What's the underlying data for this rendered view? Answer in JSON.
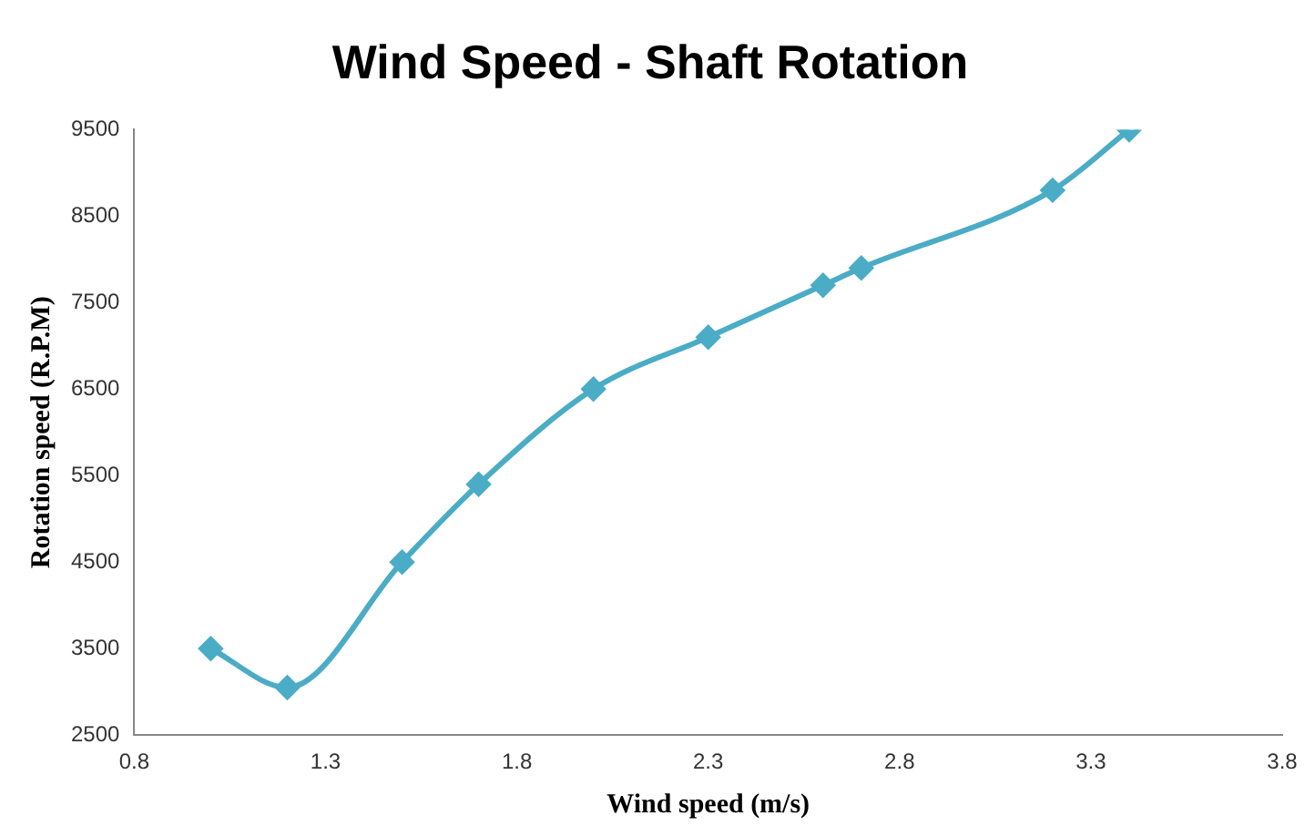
{
  "chart_data": {
    "type": "line",
    "title": "Wind Speed - Shaft Rotation",
    "xlabel": "Wind speed (m/s)",
    "ylabel": "Rotation speed (R.P.M)",
    "x": [
      1.0,
      1.2,
      1.5,
      1.7,
      2.0,
      2.3,
      2.6,
      2.7,
      3.2,
      3.4
    ],
    "series": [
      {
        "color": "#4bacc6",
        "values": [
          3500,
          3050,
          4500,
          5400,
          6500,
          7100,
          7700,
          7900,
          8800,
          9500
        ]
      }
    ],
    "xlim": [
      0.8,
      3.8
    ],
    "xticks": [
      0.8,
      1.3,
      1.8,
      2.3,
      2.8,
      3.3,
      3.8
    ],
    "ylim": [
      2500,
      9500
    ],
    "yticks": [
      2500,
      3500,
      4500,
      5500,
      6500,
      7500,
      8500,
      9500
    ],
    "grid": false,
    "legend": false,
    "marker": "diamond",
    "line_style": "solid"
  }
}
